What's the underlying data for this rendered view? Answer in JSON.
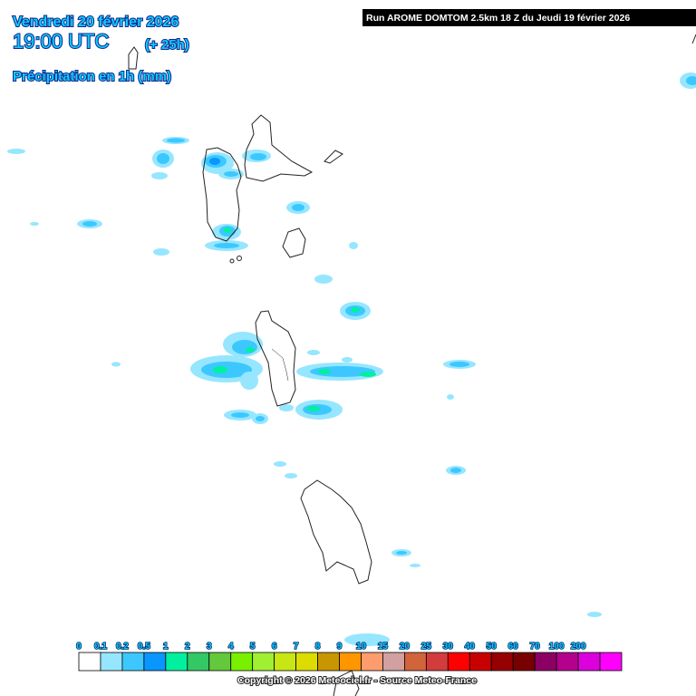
{
  "header": {
    "date": "Vendredi 20 février 2026",
    "time": "19:00 UTC",
    "lead": "(+ 25h)",
    "field": "Précipitation en 1h (mm)",
    "run": "Run AROME DOMTOM 2.5km 18 Z du Jeudi 19 février 2026"
  },
  "legend": {
    "labels": [
      "0",
      "0.1",
      "0.2",
      "0.5",
      "1",
      "2",
      "3",
      "4",
      "5",
      "6",
      "7",
      "8",
      "9",
      "10",
      "15",
      "20",
      "25",
      "30",
      "40",
      "50",
      "60",
      "70",
      "100",
      "200"
    ],
    "colors": [
      "#ffffff",
      "#96e6ff",
      "#3cc8ff",
      "#0a96ff",
      "#00f0a0",
      "#32c864",
      "#64c83c",
      "#78f000",
      "#a0f032",
      "#c8e614",
      "#dcdc00",
      "#c89600",
      "#ff9600",
      "#ff9c6e",
      "#d2a0a0",
      "#d2643c",
      "#d23c3c",
      "#ff0000",
      "#c80000",
      "#960000",
      "#780000",
      "#8c0064",
      "#b4008c",
      "#dc00dc",
      "#ff00ff"
    ]
  },
  "footer": {
    "copyright": "Copyright © 2026 Meteociel.fr - Source Meteo-France"
  }
}
